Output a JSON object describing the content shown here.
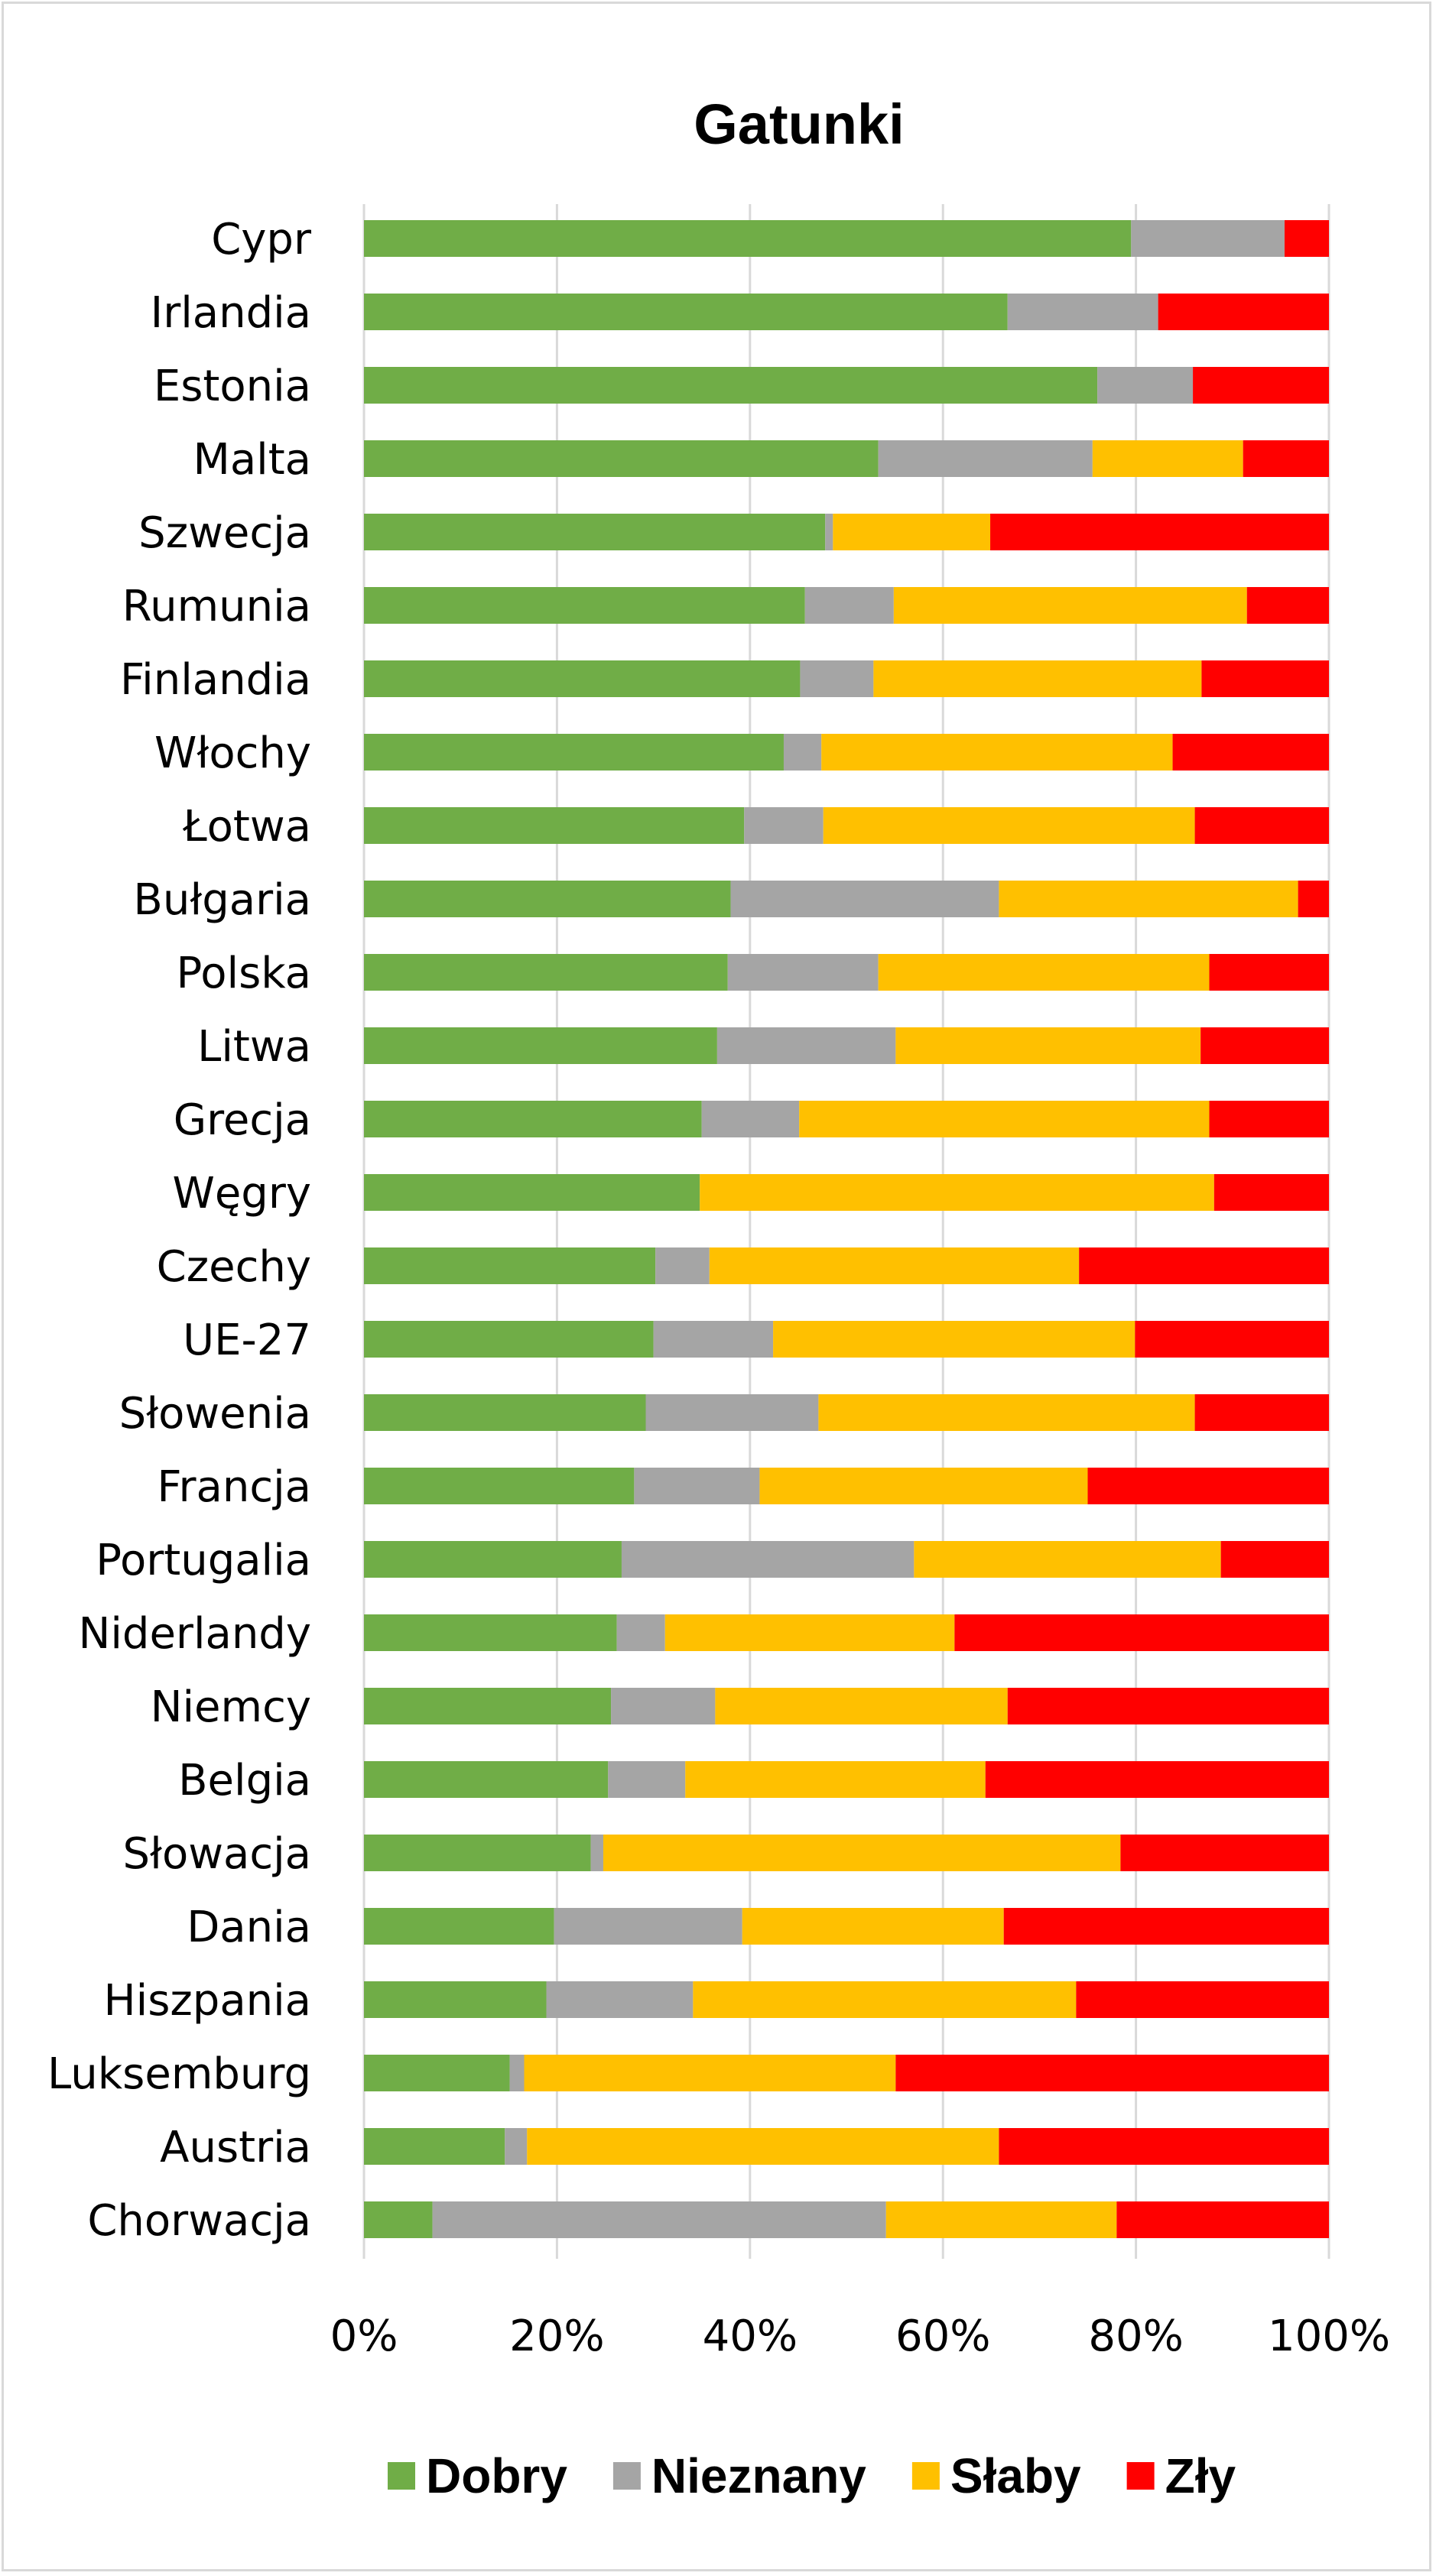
{
  "chart_data": {
    "type": "bar",
    "orientation": "horizontal",
    "stacked": "percent",
    "title": "Gatunki",
    "xlabel": "",
    "ylabel": "",
    "xlim": [
      0,
      100
    ],
    "grid": true,
    "legend_position": "bottom",
    "x_ticks": [
      "0%",
      "20%",
      "40%",
      "60%",
      "80%",
      "100%"
    ],
    "categories": [
      "Cypr",
      "Irlandia",
      "Estonia",
      "Malta",
      "Szwecja",
      "Rumunia",
      "Finlandia",
      "Włochy",
      "Łotwa",
      "Bułgaria",
      "Polska",
      "Litwa",
      "Grecja",
      "Węgry",
      "Czechy",
      "UE-27",
      "Słowenia",
      "Francja",
      "Portugalia",
      "Niderlandy",
      "Niemcy",
      "Belgia",
      "Słowacja",
      "Dania",
      "Hiszpania",
      "Luksemburg",
      "Austria",
      "Chorwacja"
    ],
    "series": [
      {
        "name": "Dobry",
        "color": "#70ad47",
        "values": [
          79.5,
          66.7,
          76.0,
          53.3,
          47.8,
          45.7,
          45.2,
          43.5,
          39.4,
          38.0,
          37.7,
          36.6,
          35.0,
          34.8,
          30.2,
          30.0,
          29.2,
          28.0,
          26.7,
          26.2,
          25.6,
          25.3,
          23.5,
          19.7,
          18.9,
          15.1,
          14.6,
          7.1
        ]
      },
      {
        "name": "Nieznany",
        "color": "#a5a5a5",
        "values": [
          15.9,
          15.6,
          9.9,
          22.2,
          0.8,
          9.2,
          7.6,
          3.9,
          8.2,
          27.8,
          15.6,
          18.5,
          10.1,
          0.0,
          5.6,
          12.4,
          17.9,
          13.0,
          30.3,
          5.0,
          10.8,
          8.0,
          1.3,
          19.5,
          15.2,
          1.5,
          2.3,
          47.0
        ]
      },
      {
        "name": "Słaby",
        "color": "#ffc000",
        "values": [
          0.0,
          0.0,
          0.0,
          15.6,
          16.3,
          36.6,
          34.0,
          36.4,
          38.5,
          31.0,
          34.3,
          31.6,
          42.5,
          53.3,
          38.3,
          37.5,
          39.0,
          34.0,
          31.8,
          30.0,
          30.3,
          31.1,
          53.6,
          27.1,
          39.7,
          38.5,
          48.9,
          23.9
        ]
      },
      {
        "name": "Zły",
        "color": "#ff0000",
        "values": [
          4.6,
          17.7,
          14.1,
          8.9,
          35.1,
          8.5,
          13.2,
          16.2,
          13.9,
          3.2,
          12.4,
          13.3,
          12.4,
          11.9,
          25.9,
          20.1,
          13.9,
          25.0,
          11.2,
          38.8,
          33.3,
          35.6,
          21.6,
          33.7,
          26.2,
          44.9,
          34.2,
          22.0
        ]
      }
    ]
  }
}
